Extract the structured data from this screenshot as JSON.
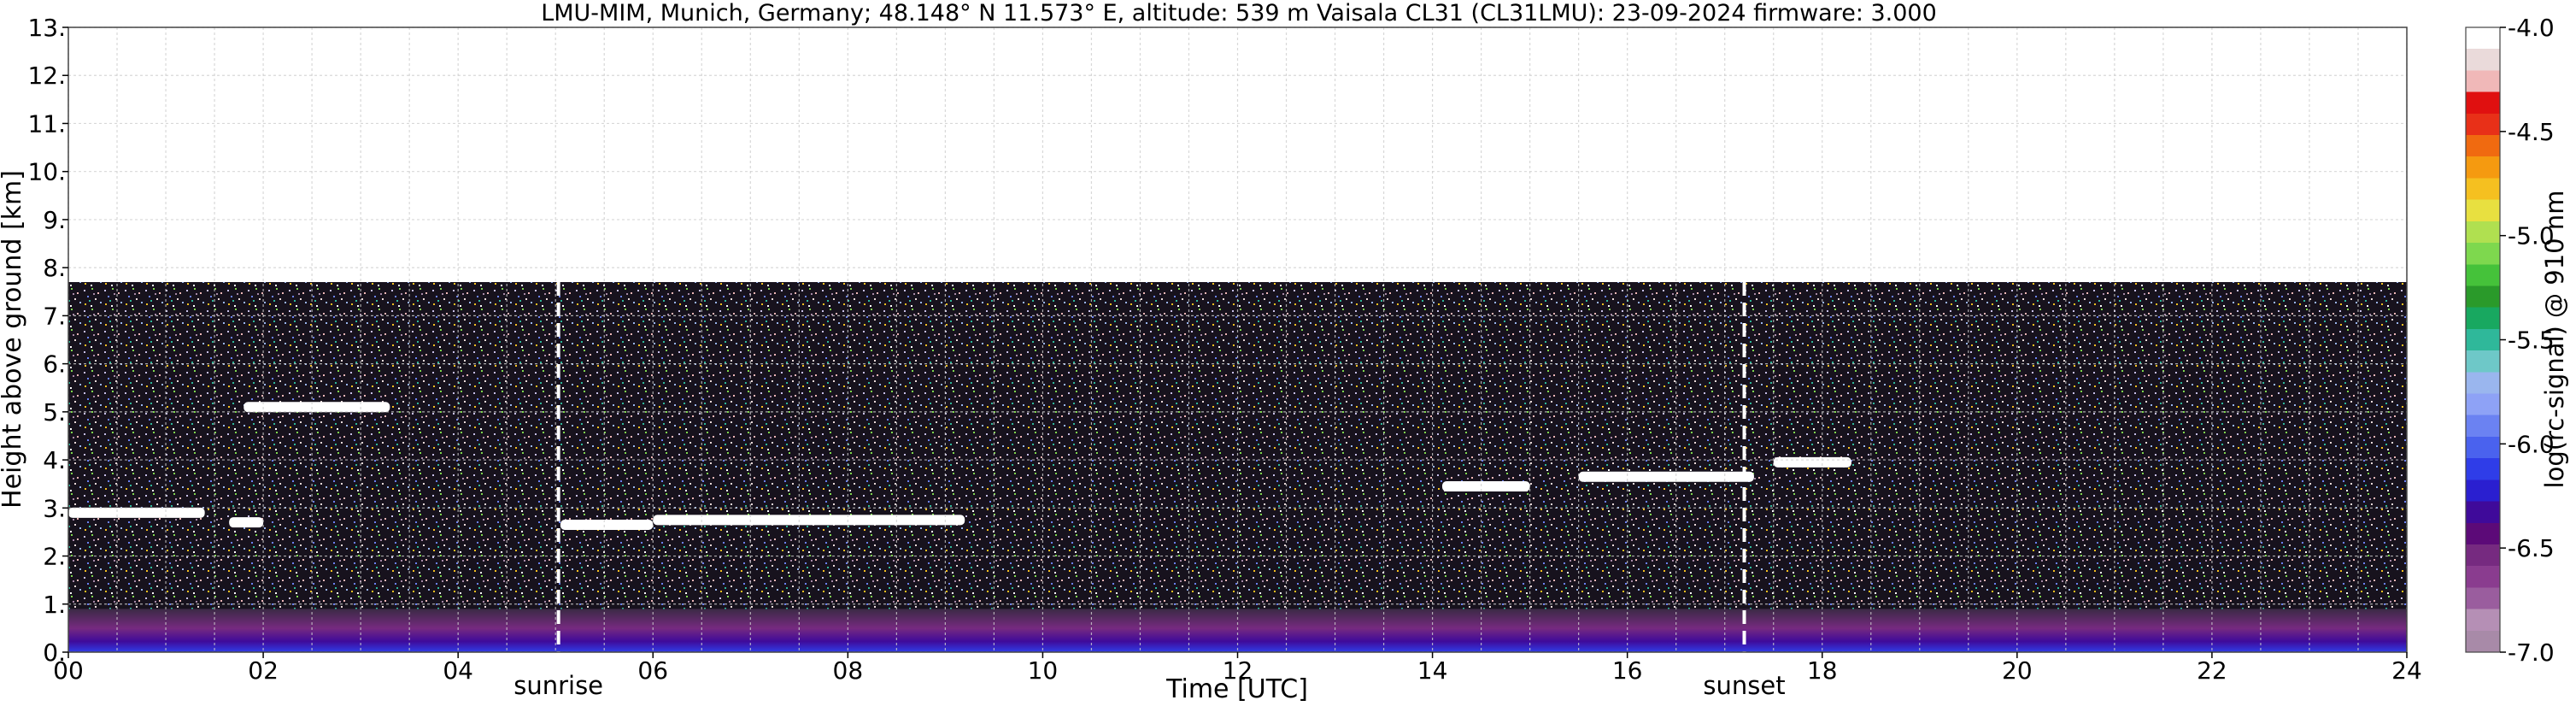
{
  "chart_data": {
    "type": "heatmap",
    "title": "LMU-MIM, Munich, Germany; 48.148° N 11.573° E, altitude: 539 m    Vaisala CL31 (CL31LMU): 23-09-2024    firmware: 3.000",
    "xlabel": "Time [UTC]",
    "ylabel": "Height above ground [km]",
    "xlim": [
      0,
      24
    ],
    "ylim": [
      0,
      13
    ],
    "x_ticks": [
      "00",
      "02",
      "04",
      "06",
      "08",
      "10",
      "12",
      "14",
      "16",
      "18",
      "20",
      "22",
      "24"
    ],
    "y_ticks": [
      "0.",
      "1.",
      "2.",
      "3.",
      "4.",
      "5.",
      "6.",
      "7.",
      "8.",
      "9.",
      "10.",
      "11.",
      "12.",
      "13."
    ],
    "grid": true,
    "colorbar": {
      "label": "log(rc-signal) @ 910 nm",
      "range": [
        -7.0,
        -4.0
      ],
      "ticks": [
        "-4.0",
        "-4.5",
        "-5.0",
        "-5.5",
        "-6.0",
        "-6.5",
        "-7.0"
      ],
      "colors": [
        "#a88aa8",
        "#b58fb5",
        "#9a5d9e",
        "#8a3c8f",
        "#762a80",
        "#5c0a78",
        "#3f0a9a",
        "#2a1fd0",
        "#2f3de8",
        "#4a62ee",
        "#6b82f2",
        "#8ea2f6",
        "#9ab6ee",
        "#6ec8c8",
        "#2fb89a",
        "#18a860",
        "#2a9a2a",
        "#45c23a",
        "#7ed84e",
        "#b0e050",
        "#e8e040",
        "#f5c020",
        "#f59a10",
        "#f06a10",
        "#e83018",
        "#e01010",
        "#f0b8b8",
        "#eadada",
        "#ffffff"
      ]
    },
    "data_range_height_km": 7.7,
    "annotations": [
      {
        "text": "sunrise",
        "x": 5.03
      },
      {
        "text": "sunset",
        "x": 17.2
      }
    ],
    "vertical_lines_x": [
      5.03,
      17.2
    ],
    "cloud_layers": [
      {
        "x_start": 0.0,
        "x_end": 1.4,
        "height_km": 2.9
      },
      {
        "x_start": 1.65,
        "x_end": 2.0,
        "height_km": 2.7
      },
      {
        "x_start": 5.05,
        "x_end": 6.0,
        "height_km": 2.65
      },
      {
        "x_start": 6.0,
        "x_end": 9.2,
        "height_km": 2.75
      },
      {
        "x_start": 1.8,
        "x_end": 3.3,
        "height_km": 5.1
      },
      {
        "x_start": 14.1,
        "x_end": 15.0,
        "height_km": 3.45
      },
      {
        "x_start": 15.5,
        "x_end": 17.3,
        "height_km": 3.65
      },
      {
        "x_start": 17.5,
        "x_end": 18.3,
        "height_km": 3.95
      }
    ],
    "boundary_layer": {
      "x_start": 0,
      "x_end": 24,
      "top_km": 0.9
    }
  }
}
